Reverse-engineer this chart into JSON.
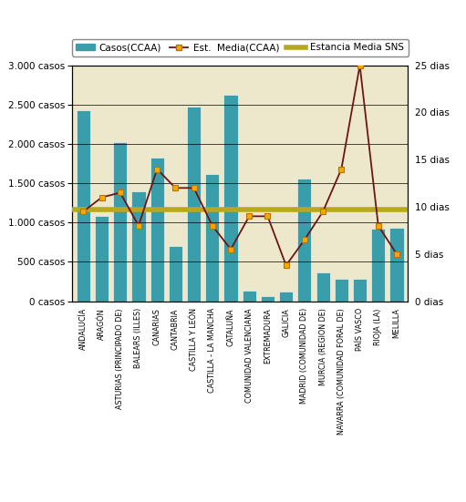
{
  "categories": [
    "ANDALUCÍA",
    "ARAGÓN",
    "ASTURIAS (PRINCIPADO DE)",
    "BALEARS (ILLES)",
    "CANARIAS",
    "CANTABRIA",
    "CASTILLA Y LEÓN",
    "CASTILLA - LA MANCHA",
    "CATALUÑA",
    "COMUNIDAD VALENCIANA",
    "EXTREMADURA",
    "GALICIA",
    "MADRID (COMUNIDAD DE)",
    "MURCIA (REGION DE)",
    "NAVARRA (COMUNIDAD FORAL DE)",
    "PAÍS VASCO",
    "RIOJA (LA)",
    "MELILLA"
  ],
  "casos": [
    2430,
    1080,
    2020,
    1400,
    1830,
    700,
    2470,
    1620,
    2630,
    140,
    60,
    120,
    1560,
    370,
    290,
    290,
    920,
    930
  ],
  "estancia_media_ccaa": [
    9.5,
    11.0,
    11.5,
    8.0,
    14.0,
    12.0,
    12.0,
    8.0,
    5.5,
    9.0,
    9.0,
    3.8,
    6.5,
    9.5,
    14.0,
    25.0,
    8.0,
    5.0
  ],
  "estancia_media_sns": 9.7,
  "bar_color": "#3a9daa",
  "line_color": "#6b1515",
  "marker_color": "#f5a800",
  "marker_edge_color": "#c07000",
  "sns_line_color": "#b8a820",
  "plot_bg_color": "#ede8cc",
  "fig_bg_color": "#ffffff",
  "ylim_casos": [
    0,
    3000
  ],
  "ylim_dias": [
    0,
    25
  ],
  "ytick_labels_casos": [
    "0 casos",
    "500 casos",
    "1.000 casos",
    "1.500 casos",
    "2.000 casos",
    "2.500 casos",
    "3.000 casos"
  ],
  "ytick_labels_dias": [
    "0 dias",
    "5 dias",
    "10 dias",
    "15 dias",
    "20 dias",
    "25 dias"
  ],
  "yticks_casos": [
    0,
    500,
    1000,
    1500,
    2000,
    2500,
    3000
  ],
  "yticks_dias": [
    0,
    5,
    10,
    15,
    20,
    25
  ]
}
